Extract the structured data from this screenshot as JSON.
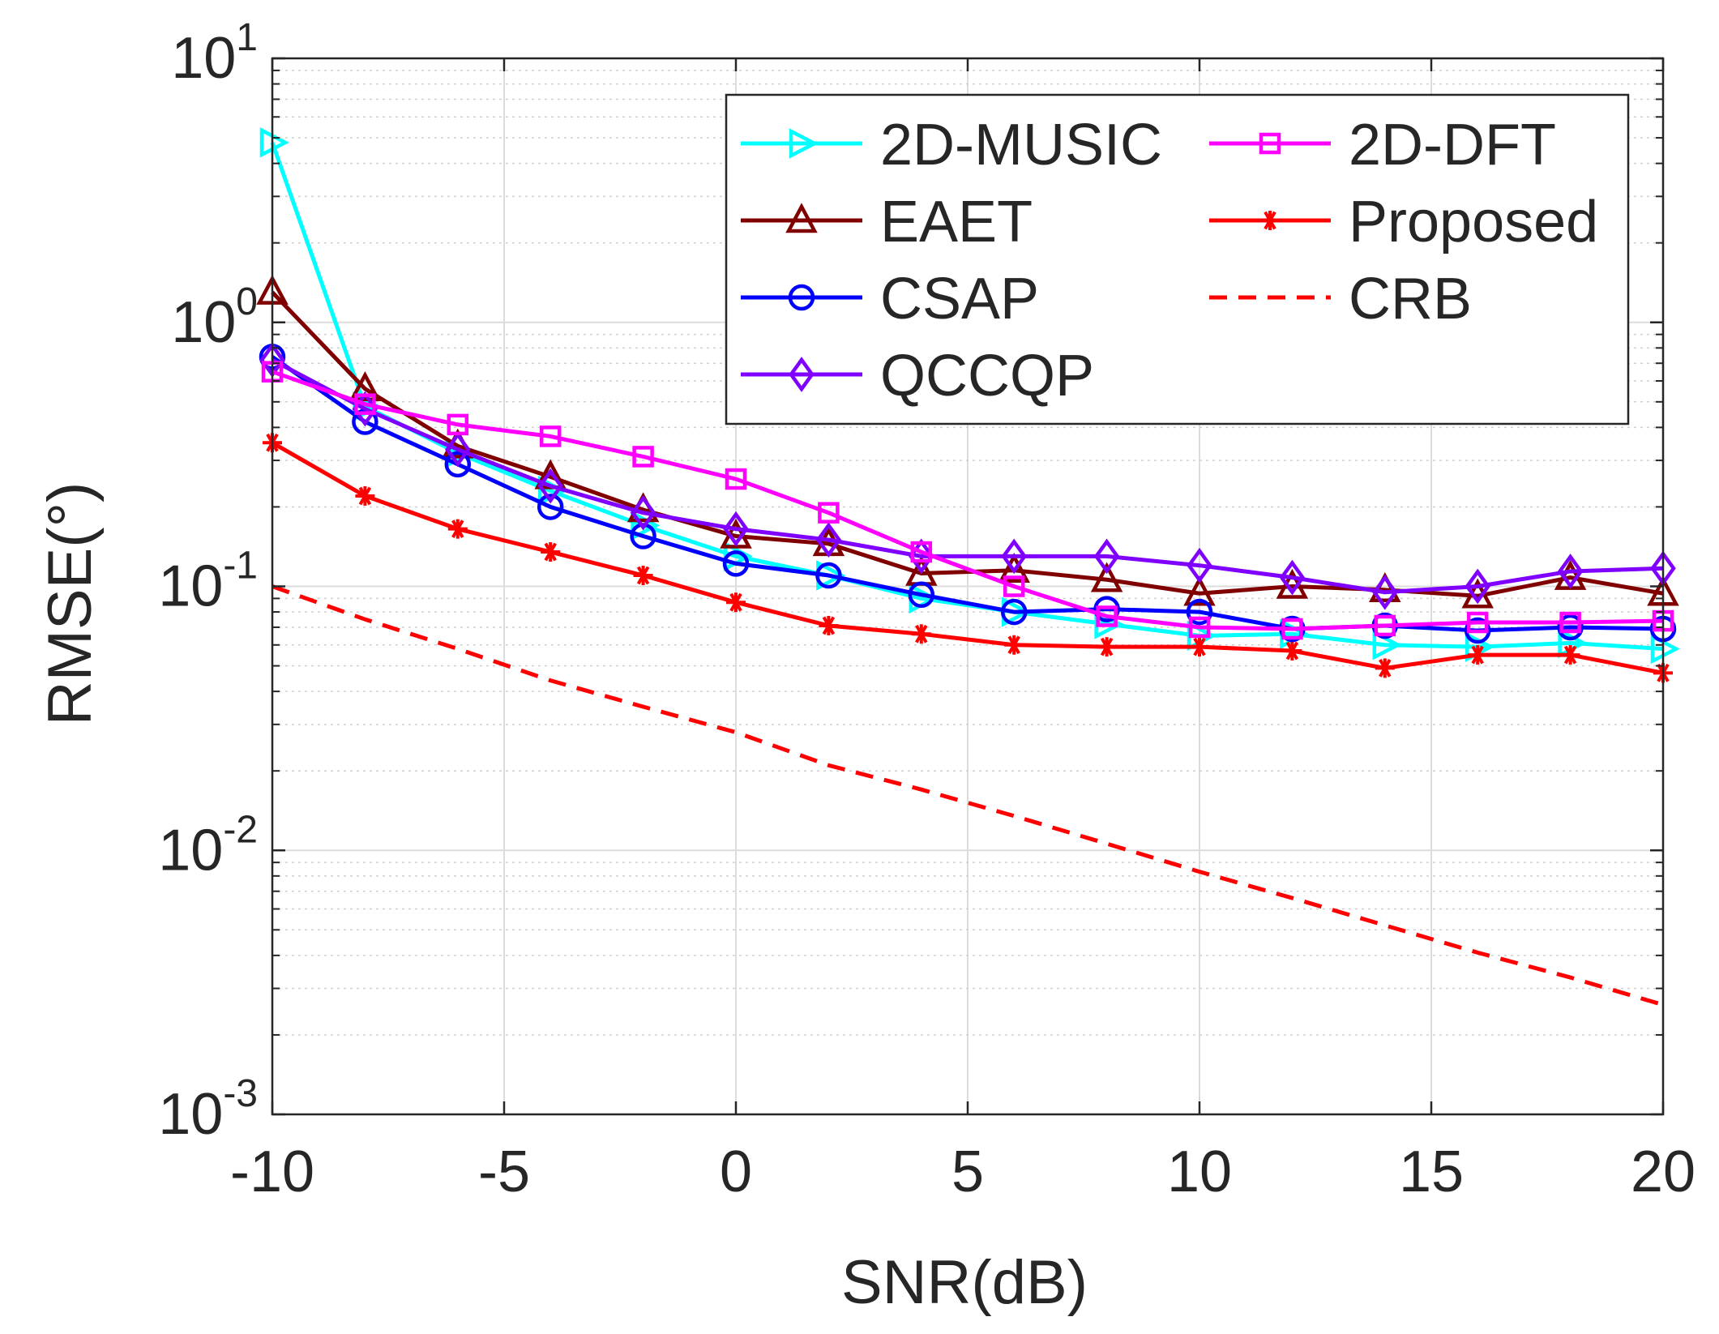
{
  "chart_data": {
    "type": "line",
    "title": "",
    "xlabel": "SNR(dB)",
    "ylabel": "RMSE(°)",
    "yscale": "log",
    "xlim": [
      -10,
      20
    ],
    "ylim": [
      0.001,
      10
    ],
    "x": [
      -10,
      -8,
      -6,
      -4,
      -2,
      0,
      2,
      4,
      6,
      8,
      10,
      12,
      14,
      16,
      18,
      20
    ],
    "x_ticks": [
      {
        "value": -10,
        "label": "-10"
      },
      {
        "value": -5,
        "label": "-5"
      },
      {
        "value": 0,
        "label": "0"
      },
      {
        "value": 5,
        "label": "5"
      },
      {
        "value": 10,
        "label": "10"
      },
      {
        "value": 15,
        "label": "15"
      },
      {
        "value": 20,
        "label": "20"
      }
    ],
    "y_ticks": [
      {
        "value": 0.001,
        "base": "10",
        "exp": "-3"
      },
      {
        "value": 0.01,
        "base": "10",
        "exp": "-2"
      },
      {
        "value": 0.1,
        "base": "10",
        "exp": "-1"
      },
      {
        "value": 1,
        "base": "10",
        "exp": "0"
      },
      {
        "value": 10,
        "base": "10",
        "exp": "1"
      }
    ],
    "grid": true,
    "legend_position": "top-right",
    "legend_columns": 2,
    "series": [
      {
        "name": "2D-MUSIC",
        "color": "#00FFFF",
        "marker": "triangle-right",
        "dash": "solid",
        "values": [
          4.8,
          0.48,
          0.32,
          0.23,
          0.17,
          0.13,
          0.11,
          0.09,
          0.08,
          0.072,
          0.065,
          0.066,
          0.06,
          0.059,
          0.061,
          0.058
        ]
      },
      {
        "name": "2D-DFT",
        "color": "#FF00FF",
        "marker": "square",
        "dash": "solid",
        "values": [
          0.65,
          0.49,
          0.41,
          0.37,
          0.31,
          0.255,
          0.19,
          0.135,
          0.1,
          0.077,
          0.07,
          0.069,
          0.071,
          0.073,
          0.073,
          0.074
        ]
      },
      {
        "name": "EAET",
        "color": "#800000",
        "marker": "triangle-up",
        "dash": "solid",
        "values": [
          1.3,
          0.56,
          0.34,
          0.26,
          0.195,
          0.155,
          0.145,
          0.112,
          0.115,
          0.106,
          0.094,
          0.1,
          0.097,
          0.092,
          0.108,
          0.094
        ]
      },
      {
        "name": "Proposed",
        "color": "#FF0000",
        "marker": "asterisk",
        "dash": "solid",
        "values": [
          0.35,
          0.22,
          0.165,
          0.135,
          0.11,
          0.087,
          0.071,
          0.066,
          0.06,
          0.059,
          0.059,
          0.057,
          0.049,
          0.055,
          0.055,
          0.047
        ]
      },
      {
        "name": "CSAP",
        "color": "#0000FF",
        "marker": "circle",
        "dash": "solid",
        "values": [
          0.74,
          0.42,
          0.29,
          0.2,
          0.155,
          0.122,
          0.11,
          0.093,
          0.08,
          0.082,
          0.08,
          0.069,
          0.071,
          0.068,
          0.07,
          0.069
        ]
      },
      {
        "name": "CRB",
        "color": "#FF0000",
        "marker": "none",
        "dash": "dashed",
        "values": [
          0.1,
          0.075,
          0.058,
          0.044,
          0.035,
          0.028,
          0.021,
          0.017,
          0.0135,
          0.0106,
          0.0083,
          0.0066,
          0.0052,
          0.0041,
          0.0033,
          0.0026
        ]
      },
      {
        "name": "QCCQP",
        "color": "#8000FF",
        "marker": "diamond",
        "dash": "solid",
        "values": [
          0.72,
          0.47,
          0.33,
          0.24,
          0.19,
          0.165,
          0.15,
          0.13,
          0.13,
          0.13,
          0.12,
          0.108,
          0.095,
          0.1,
          0.114,
          0.117
        ]
      }
    ]
  }
}
